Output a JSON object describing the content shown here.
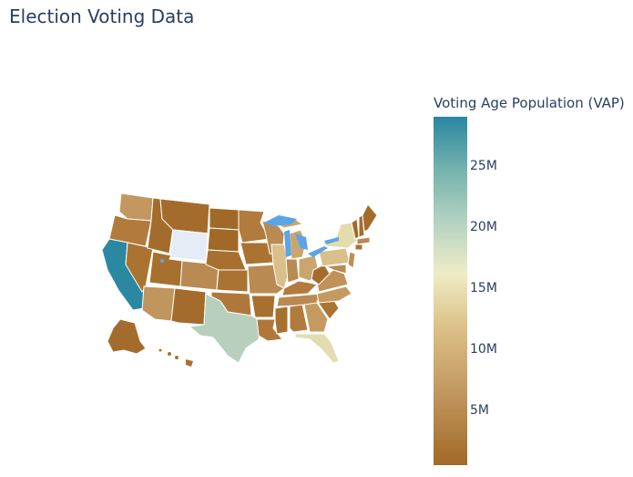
{
  "title": "Election Voting Data",
  "colorbar": {
    "title": "Voting Age Population (VAP)",
    "ticks": [
      {
        "label": "25M",
        "value": 25000000
      },
      {
        "label": "20M",
        "value": 20000000
      },
      {
        "label": "15M",
        "value": 15000000
      },
      {
        "label": "10M",
        "value": 10000000
      },
      {
        "label": "5M",
        "value": 5000000
      }
    ],
    "range": [
      500000,
      29000000
    ],
    "colorscale": [
      "#a16928",
      "#c0955e",
      "#dcc288",
      "#eeecc6",
      "#b4d2c2",
      "#74b2ae",
      "#2887a1"
    ]
  },
  "map": {
    "type": "choropleth",
    "scope": "usa",
    "missing_color": "#e5ecf6",
    "lake_color": "#5aa5e8",
    "border_color": "#ffffff"
  }
}
